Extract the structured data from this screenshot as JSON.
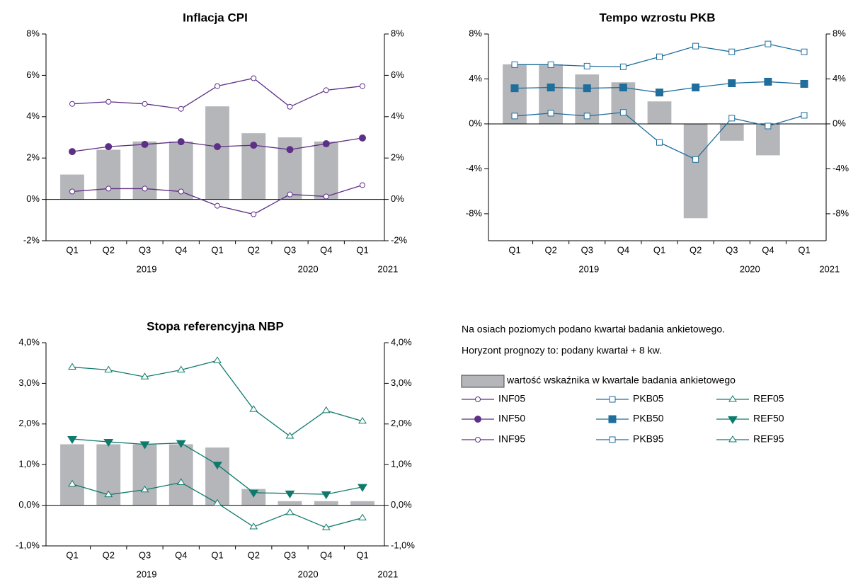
{
  "chart_data": [
    {
      "type": "bar-line",
      "title": "Inflacja CPI",
      "categories": [
        "Q1",
        "Q2",
        "Q3",
        "Q4",
        "Q1",
        "Q2",
        "Q3",
        "Q4",
        "Q1"
      ],
      "groups": [
        "2019",
        "2020",
        "2021"
      ],
      "ylim": [
        -2,
        8
      ],
      "yticks": [
        {
          "value": -2,
          "label": "-2%"
        },
        {
          "value": 0,
          "label": "0%"
        },
        {
          "value": 2,
          "label": "2%"
        },
        {
          "value": 4,
          "label": "4%"
        },
        {
          "value": 6,
          "label": "6%"
        },
        {
          "value": 8,
          "label": "8%"
        }
      ],
      "zero_line": true,
      "series": [
        {
          "name": "wartość wskaźnika w kwartale badania ankietowego",
          "kind": "bar",
          "color": "#b4b6ba",
          "values": [
            1.2,
            2.4,
            2.8,
            2.8,
            4.5,
            3.2,
            3.0,
            2.8,
            null
          ]
        },
        {
          "name": "INF05",
          "kind": "line",
          "marker": "circle",
          "filled": false,
          "color": "#5e2f86",
          "values": [
            0.38,
            0.52,
            0.52,
            0.38,
            -0.31,
            -0.72,
            0.24,
            0.14,
            0.69
          ]
        },
        {
          "name": "INF50",
          "kind": "line",
          "marker": "circle",
          "filled": true,
          "color": "#5e2f86",
          "values": [
            2.31,
            2.55,
            2.66,
            2.79,
            2.55,
            2.62,
            2.41,
            2.69,
            2.97
          ]
        },
        {
          "name": "INF95",
          "kind": "line",
          "marker": "circle",
          "filled": false,
          "color": "#5e2f86",
          "values": [
            4.62,
            4.72,
            4.62,
            4.38,
            5.48,
            5.86,
            4.48,
            5.28,
            5.48
          ]
        }
      ]
    },
    {
      "type": "bar-line",
      "title": "Tempo wzrostu PKB",
      "categories": [
        "Q1",
        "Q2",
        "Q3",
        "Q4",
        "Q1",
        "Q2",
        "Q3",
        "Q4",
        "Q1"
      ],
      "groups": [
        "2019",
        "2020",
        "2021"
      ],
      "ylim": [
        -10.4,
        8
      ],
      "yticks": [
        {
          "value": -8,
          "label": "-8%"
        },
        {
          "value": -4,
          "label": "-4%"
        },
        {
          "value": 0,
          "label": "0%"
        },
        {
          "value": 4,
          "label": "4%"
        },
        {
          "value": 8,
          "label": "8%"
        }
      ],
      "zero_line": true,
      "series": [
        {
          "kind": "bar",
          "color": "#b4b6ba",
          "values": [
            5.3,
            5.3,
            4.4,
            3.7,
            2.0,
            -8.4,
            -1.5,
            -2.8,
            null
          ]
        },
        {
          "name": "PKB05",
          "kind": "line",
          "marker": "square",
          "filled": false,
          "color": "#1f6e9c",
          "values": [
            0.7,
            0.95,
            0.7,
            1.02,
            -1.65,
            -3.17,
            0.51,
            -0.19,
            0.76
          ]
        },
        {
          "name": "PKB50",
          "kind": "line",
          "marker": "square",
          "filled": true,
          "color": "#1f6e9c",
          "values": [
            3.17,
            3.24,
            3.17,
            3.24,
            2.79,
            3.24,
            3.62,
            3.75,
            3.56
          ]
        },
        {
          "name": "PKB95",
          "kind": "line",
          "marker": "square",
          "filled": false,
          "color": "#1f6e9c",
          "values": [
            5.27,
            5.27,
            5.14,
            5.08,
            5.97,
            6.92,
            6.41,
            7.11,
            6.41
          ]
        }
      ]
    },
    {
      "type": "bar-line",
      "title": "Stopa referencyjna NBP",
      "categories": [
        "Q1",
        "Q2",
        "Q3",
        "Q4",
        "Q1",
        "Q2",
        "Q3",
        "Q4",
        "Q1"
      ],
      "groups": [
        "2019",
        "2020",
        "2021"
      ],
      "ylim": [
        -1,
        4
      ],
      "yticks": [
        {
          "value": -1,
          "label": "-1,0%"
        },
        {
          "value": 0,
          "label": "0,0%"
        },
        {
          "value": 1,
          "label": "1,0%"
        },
        {
          "value": 2,
          "label": "2,0%"
        },
        {
          "value": 3,
          "label": "3,0%"
        },
        {
          "value": 4,
          "label": "4,0%"
        }
      ],
      "zero_line": true,
      "series": [
        {
          "kind": "bar",
          "color": "#b4b6ba",
          "values": [
            1.5,
            1.5,
            1.5,
            1.5,
            1.42,
            0.4,
            0.1,
            0.1,
            0.1
          ]
        },
        {
          "name": "REF05",
          "kind": "line",
          "marker": "triangle-up",
          "filled": false,
          "color": "#0f7a6c",
          "values": [
            0.52,
            0.26,
            0.38,
            0.56,
            0.05,
            -0.53,
            -0.18,
            -0.55,
            -0.31
          ]
        },
        {
          "name": "REF50",
          "kind": "line",
          "marker": "triangle-down",
          "filled": true,
          "color": "#0f7a6c",
          "values": [
            1.63,
            1.56,
            1.5,
            1.53,
            1.0,
            0.31,
            0.29,
            0.27,
            0.45
          ]
        },
        {
          "name": "REF95",
          "kind": "line",
          "marker": "triangle-up",
          "filled": false,
          "color": "#0f7a6c",
          "values": [
            3.4,
            3.33,
            3.16,
            3.33,
            3.56,
            2.36,
            1.7,
            2.33,
            2.07
          ]
        }
      ]
    }
  ],
  "notes": [
    "Na osiach poziomych podano kwartał badania ankietowego.",
    "Horyzont prognozy to: podany kwartał + 8 kw."
  ]
}
